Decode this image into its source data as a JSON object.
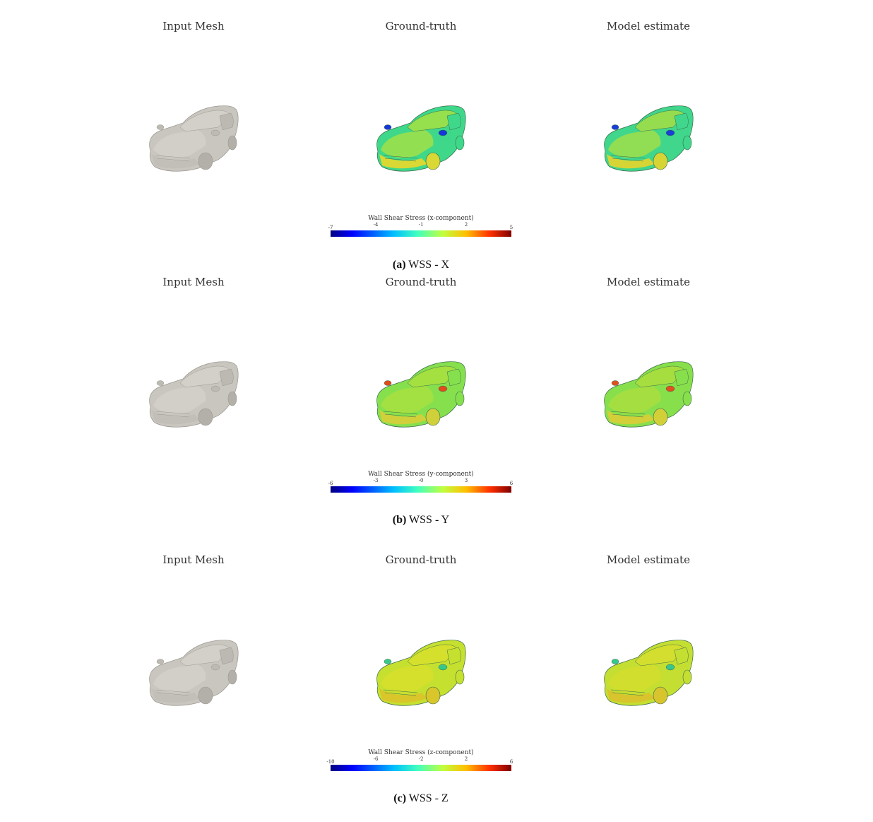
{
  "panels": [
    {
      "columns": [
        "Input Mesh",
        "Ground-truth",
        "Model estimate"
      ],
      "colorbar": {
        "title": "Wall Shear Stress (x-component)",
        "ticks": [
          "-7",
          "-4",
          "-1",
          "2",
          "5"
        ]
      },
      "caption_label": "(a)",
      "caption_text": " WSS - X",
      "gt_body": "#3fd88a",
      "gt_hood": "#9be04a",
      "gt_front": "#d9d834",
      "gt_mirror": "#1638d8",
      "est_body": "#40d68c",
      "est_hood": "#9ade4c",
      "est_front": "#d7d436",
      "est_mirror": "#1a3ed6"
    },
    {
      "columns": [
        "Input Mesh",
        "Ground-truth",
        "Model estimate"
      ],
      "colorbar": {
        "title": "Wall Shear Stress (y-component)",
        "ticks": [
          "-6",
          "-3",
          "-0",
          "3",
          "6"
        ]
      },
      "caption_label": "(b)",
      "caption_text": " WSS - Y",
      "gt_body": "#86e04e",
      "gt_hood": "#a6e040",
      "gt_front": "#d0d03a",
      "gt_mirror": "#e04a1c",
      "est_body": "#88df4c",
      "est_hood": "#a8de40",
      "est_front": "#d2cf38",
      "est_mirror": "#e0501e"
    },
    {
      "columns": [
        "Input Mesh",
        "Ground-truth",
        "Model estimate"
      ],
      "colorbar": {
        "title": "Wall Shear Stress (z-component)",
        "ticks": [
          "-10",
          "-6",
          "-2",
          "2",
          "6"
        ]
      },
      "caption_label": "(c)",
      "caption_text": " WSS - Z",
      "gt_body": "#c6e030",
      "gt_hood": "#d6e02c",
      "gt_front": "#d8c62a",
      "gt_mirror": "#36c88a",
      "est_body": "#c4df32",
      "est_hood": "#d4de2e",
      "est_front": "#d8c42c",
      "est_mirror": "#38c68c"
    }
  ],
  "mesh_color": "#c9c6bf"
}
